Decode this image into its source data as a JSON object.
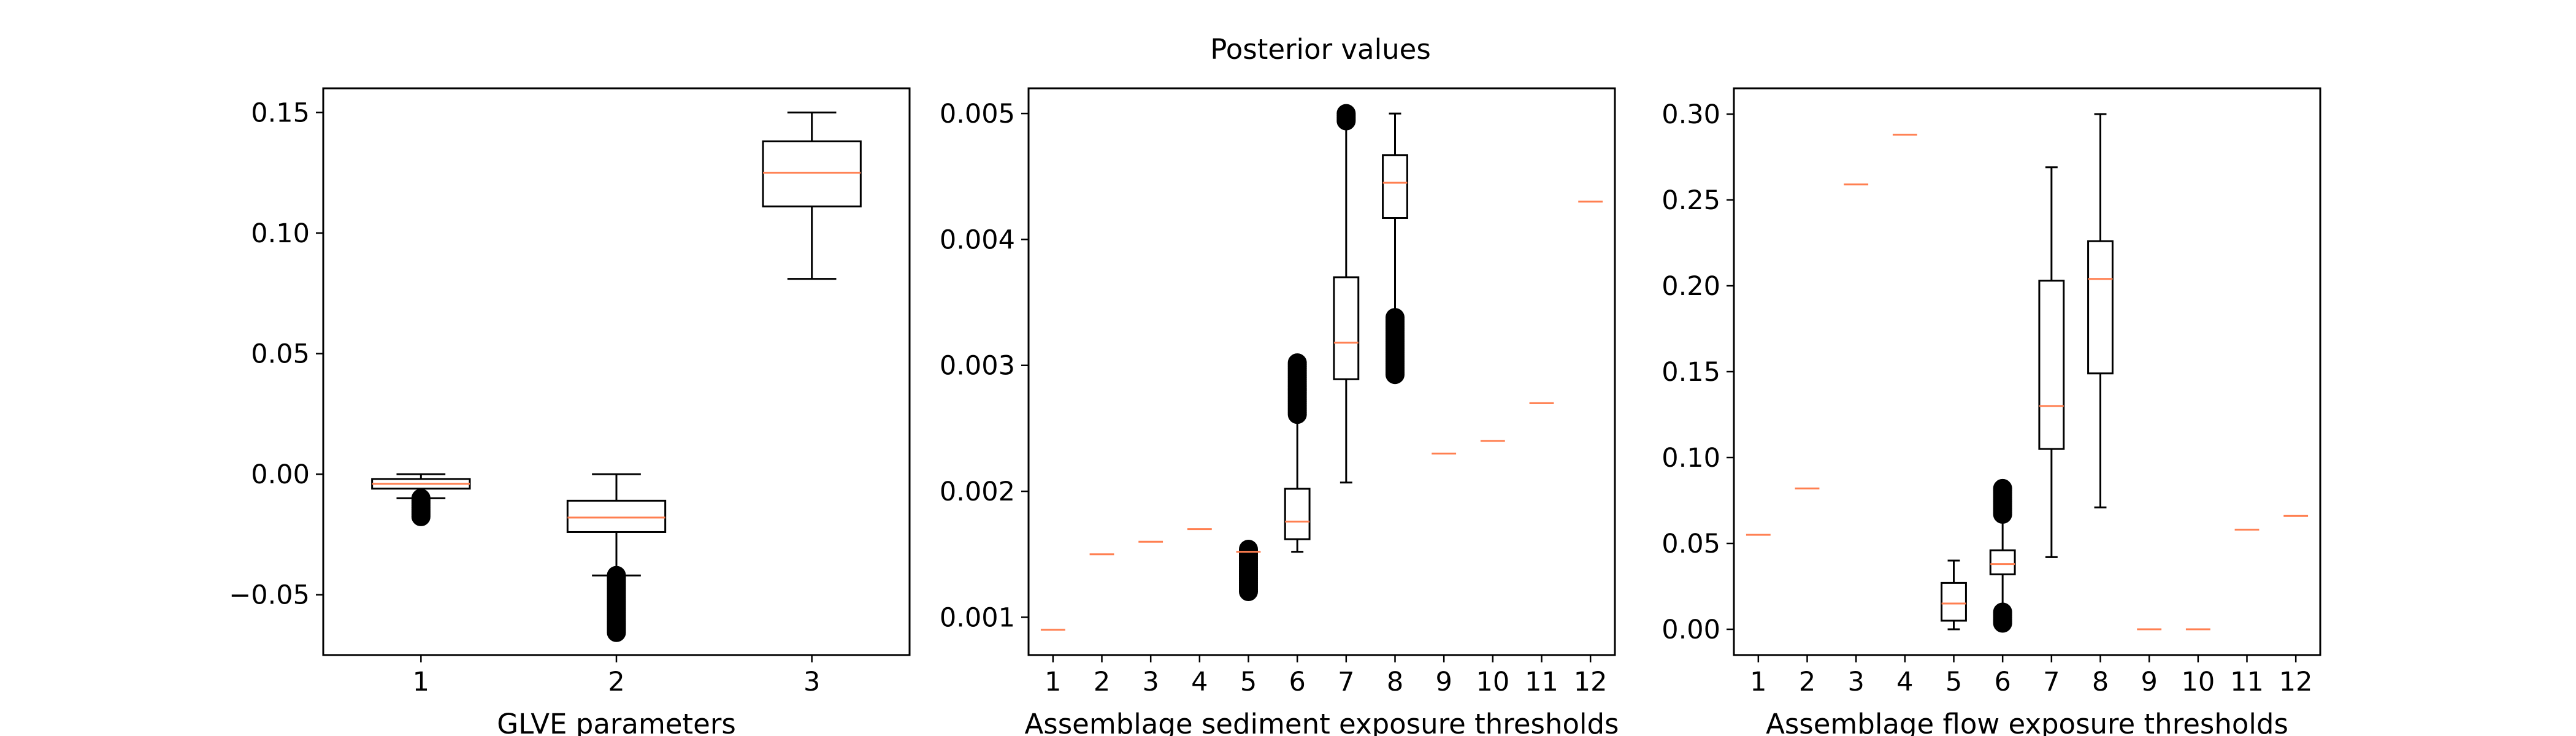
{
  "figure": {
    "title": "Posterior values"
  },
  "colors": {
    "box": "#000000",
    "median": "#ff7f50",
    "flier": "#000000",
    "background": "#ffffff"
  },
  "chart_data": [
    {
      "type": "box",
      "xlabel": "GLVE parameters",
      "ylabel": "",
      "categories": [
        "1",
        "2",
        "3"
      ],
      "ylim": [
        -0.075,
        0.16
      ],
      "yticks": [
        -0.05,
        0.0,
        0.05,
        0.1,
        0.15
      ],
      "ytick_labels": [
        "−0.05",
        "0.00",
        "0.05",
        "0.10",
        "0.15"
      ],
      "boxes": [
        {
          "whislo": -0.01,
          "q1": -0.006,
          "med": -0.004,
          "q3": -0.002,
          "whishi": 0.0,
          "fliers_range": [
            -0.018,
            -0.01
          ]
        },
        {
          "whislo": -0.042,
          "q1": -0.024,
          "med": -0.018,
          "q3": -0.011,
          "whishi": 0.0,
          "fliers_range": [
            -0.066,
            -0.042
          ]
        },
        {
          "whislo": 0.081,
          "q1": 0.111,
          "med": 0.125,
          "q3": 0.138,
          "whishi": 0.15,
          "fliers_range": null
        }
      ]
    },
    {
      "type": "box",
      "xlabel": "Assemblage sediment exposure thresholds",
      "ylabel": "",
      "categories": [
        "1",
        "2",
        "3",
        "4",
        "5",
        "6",
        "7",
        "8",
        "9",
        "10",
        "11",
        "12"
      ],
      "ylim": [
        0.0007,
        0.0052
      ],
      "yticks": [
        0.001,
        0.002,
        0.003,
        0.004,
        0.005
      ],
      "ytick_labels": [
        "0.001",
        "0.002",
        "0.003",
        "0.004",
        "0.005"
      ],
      "boxes": [
        {
          "whislo": 0.0009,
          "q1": 0.0009,
          "med": 0.0009,
          "q3": 0.0009,
          "whishi": 0.0009,
          "fliers_range": null
        },
        {
          "whislo": 0.0015,
          "q1": 0.0015,
          "med": 0.0015,
          "q3": 0.0015,
          "whishi": 0.0015,
          "fliers_range": null
        },
        {
          "whislo": 0.0016,
          "q1": 0.0016,
          "med": 0.0016,
          "q3": 0.0016,
          "whishi": 0.0016,
          "fliers_range": null
        },
        {
          "whislo": 0.0017,
          "q1": 0.0017,
          "med": 0.0017,
          "q3": 0.0017,
          "whishi": 0.0017,
          "fliers_range": null
        },
        {
          "whislo": 0.00152,
          "q1": 0.00152,
          "med": 0.00152,
          "q3": 0.00152,
          "whishi": 0.00152,
          "fliers_range": [
            0.0012,
            0.00154
          ]
        },
        {
          "whislo": 0.00152,
          "q1": 0.00162,
          "med": 0.00176,
          "q3": 0.00202,
          "whishi": 0.0026,
          "fliers_range": [
            0.0026,
            0.00302
          ]
        },
        {
          "whislo": 0.00207,
          "q1": 0.00289,
          "med": 0.00318,
          "q3": 0.0037,
          "whishi": 0.00492,
          "fliers_range": [
            0.00493,
            0.005
          ]
        },
        {
          "whislo": 0.00292,
          "q1": 0.00417,
          "med": 0.00445,
          "q3": 0.00467,
          "whishi": 0.005,
          "fliers_range": [
            0.00292,
            0.00338
          ]
        },
        {
          "whislo": 0.0023,
          "q1": 0.0023,
          "med": 0.0023,
          "q3": 0.0023,
          "whishi": 0.0023,
          "fliers_range": null
        },
        {
          "whislo": 0.0024,
          "q1": 0.0024,
          "med": 0.0024,
          "q3": 0.0024,
          "whishi": 0.0024,
          "fliers_range": null
        },
        {
          "whislo": 0.0027,
          "q1": 0.0027,
          "med": 0.0027,
          "q3": 0.0027,
          "whishi": 0.0027,
          "fliers_range": null
        },
        {
          "whislo": 0.0043,
          "q1": 0.0043,
          "med": 0.0043,
          "q3": 0.0043,
          "whishi": 0.0043,
          "fliers_range": null
        }
      ]
    },
    {
      "type": "box",
      "xlabel": "Assemblage flow exposure thresholds",
      "ylabel": "",
      "categories": [
        "1",
        "2",
        "3",
        "4",
        "5",
        "6",
        "7",
        "8",
        "9",
        "10",
        "11",
        "12"
      ],
      "ylim": [
        -0.015,
        0.315
      ],
      "yticks": [
        0.0,
        0.05,
        0.1,
        0.15,
        0.2,
        0.25,
        0.3
      ],
      "ytick_labels": [
        "0.00",
        "0.05",
        "0.10",
        "0.15",
        "0.20",
        "0.25",
        "0.30"
      ],
      "boxes": [
        {
          "whislo": 0.055,
          "q1": 0.055,
          "med": 0.055,
          "q3": 0.055,
          "whishi": 0.055,
          "fliers_range": null
        },
        {
          "whislo": 0.082,
          "q1": 0.082,
          "med": 0.082,
          "q3": 0.082,
          "whishi": 0.082,
          "fliers_range": null
        },
        {
          "whislo": 0.259,
          "q1": 0.259,
          "med": 0.259,
          "q3": 0.259,
          "whishi": 0.259,
          "fliers_range": null
        },
        {
          "whislo": 0.288,
          "q1": 0.288,
          "med": 0.288,
          "q3": 0.288,
          "whishi": 0.288,
          "fliers_range": null
        },
        {
          "whislo": 0.0,
          "q1": 0.005,
          "med": 0.015,
          "q3": 0.027,
          "whishi": 0.04,
          "fliers_range": null
        },
        {
          "whislo": 0.013,
          "q1": 0.032,
          "med": 0.038,
          "q3": 0.046,
          "whishi": 0.065,
          "fliers_range": [
            0.066,
            0.082
          ],
          "fliers_low_range": [
            0.003,
            0.01
          ]
        },
        {
          "whislo": 0.042,
          "q1": 0.105,
          "med": 0.13,
          "q3": 0.203,
          "whishi": 0.269,
          "fliers_range": null
        },
        {
          "whislo": 0.071,
          "q1": 0.149,
          "med": 0.204,
          "q3": 0.226,
          "whishi": 0.3,
          "fliers_range": null
        },
        {
          "whislo": 0.0,
          "q1": 0.0,
          "med": 0.0,
          "q3": 0.0,
          "whishi": 0.0,
          "fliers_range": null
        },
        {
          "whislo": 0.0,
          "q1": 0.0,
          "med": 0.0,
          "q3": 0.0,
          "whishi": 0.0,
          "fliers_range": null
        },
        {
          "whislo": 0.058,
          "q1": 0.058,
          "med": 0.058,
          "q3": 0.058,
          "whishi": 0.058,
          "fliers_range": null
        },
        {
          "whislo": 0.066,
          "q1": 0.066,
          "med": 0.066,
          "q3": 0.066,
          "whishi": 0.066,
          "fliers_range": null
        }
      ]
    }
  ]
}
